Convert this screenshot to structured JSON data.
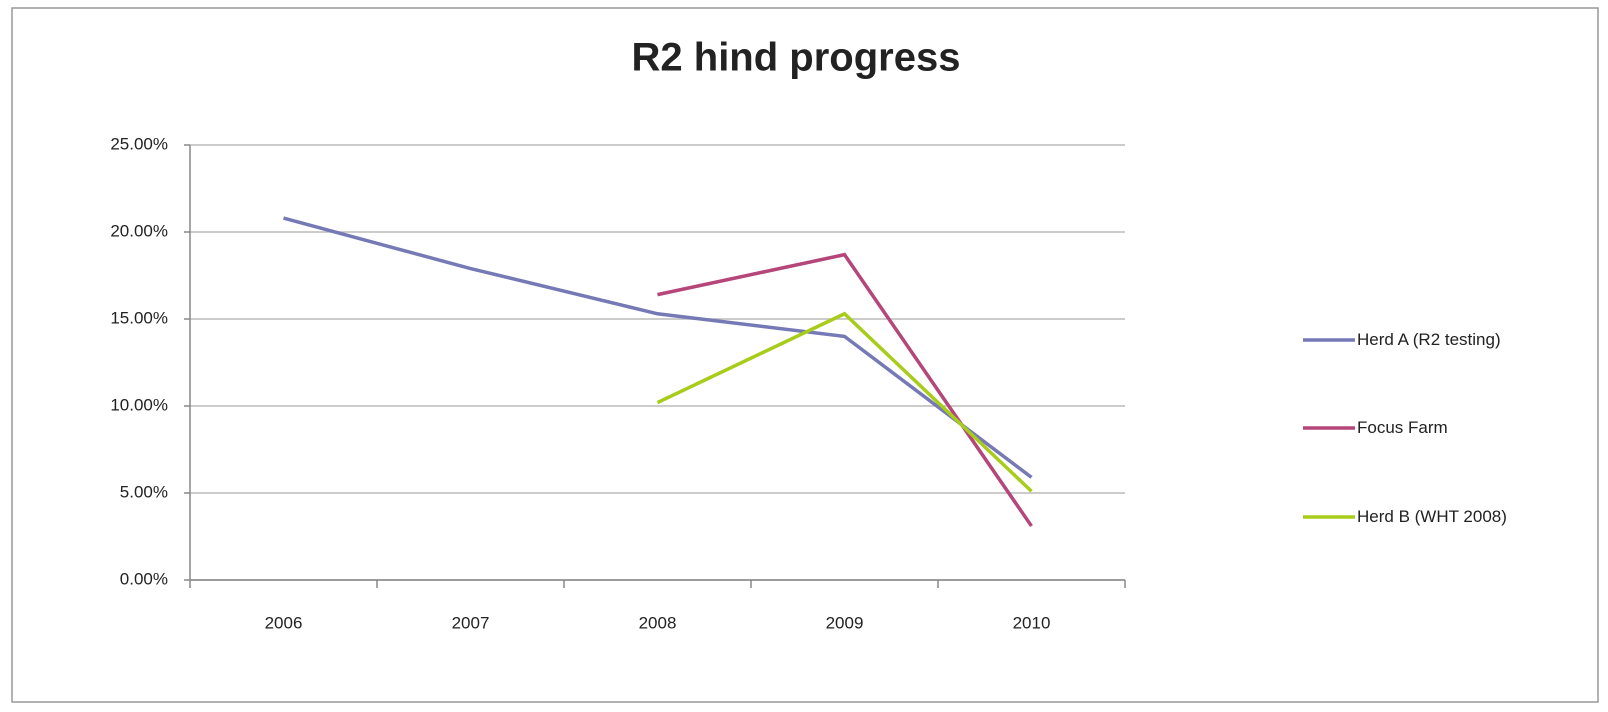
{
  "chart_data": {
    "type": "line",
    "title": "R2 hind progress",
    "categories": [
      "2006",
      "2007",
      "2008",
      "2009",
      "2010"
    ],
    "series": [
      {
        "name": "Herd A (R2 testing)",
        "color": "#7579b5",
        "values": [
          20.8,
          17.9,
          15.3,
          14.0,
          5.9
        ]
      },
      {
        "name": "Focus Farm",
        "color": "#b5467a",
        "values": [
          null,
          null,
          16.4,
          18.7,
          3.1
        ]
      },
      {
        "name": "Herd B (WHT 2008)",
        "color": "#a8cc1a",
        "values": [
          null,
          null,
          10.2,
          15.3,
          5.1
        ]
      }
    ],
    "ylim": [
      0,
      25
    ],
    "yticks": [
      {
        "value": 0,
        "label": "0.00%"
      },
      {
        "value": 5,
        "label": "5.00%"
      },
      {
        "value": 10,
        "label": "10.00%"
      },
      {
        "value": 15,
        "label": "15.00%"
      },
      {
        "value": 20,
        "label": "20.00%"
      },
      {
        "value": 25,
        "label": "25.00%"
      }
    ],
    "grid": true,
    "legend": "right"
  }
}
